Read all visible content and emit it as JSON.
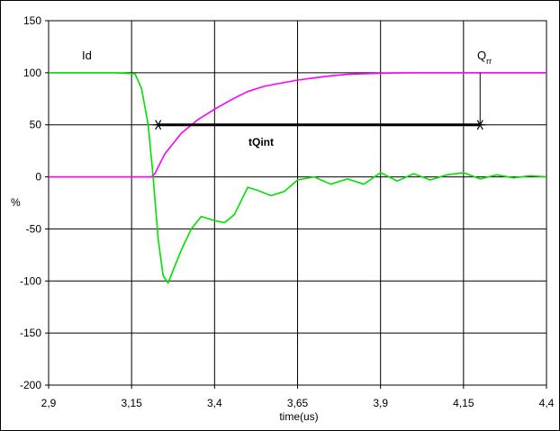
{
  "chart_data": {
    "type": "line",
    "title": "",
    "xlabel": "time(us)",
    "ylabel": "%",
    "xlim": [
      2.9,
      4.4
    ],
    "ylim": [
      -200,
      150
    ],
    "x_ticks": [
      2.9,
      3.15,
      3.4,
      3.65,
      3.9,
      4.15,
      4.4
    ],
    "x_tick_labels": [
      "2,9",
      "3,15",
      "3,4",
      "3,65",
      "3,9",
      "4,15",
      "4,4"
    ],
    "y_ticks": [
      150,
      100,
      50,
      0,
      -50,
      -100,
      -150,
      -200
    ],
    "y_tick_labels": [
      "150",
      "100",
      "50",
      "0",
      "-50",
      "-100",
      "-150",
      "-200"
    ],
    "grid": true,
    "legend": "none",
    "series": [
      {
        "name": "Id",
        "color": "#00e000",
        "x": [
          2.9,
          3.0,
          3.1,
          3.16,
          3.18,
          3.2,
          3.215,
          3.23,
          3.245,
          3.26,
          3.275,
          3.3,
          3.33,
          3.36,
          3.4,
          3.43,
          3.46,
          3.5,
          3.53,
          3.57,
          3.61,
          3.65,
          3.7,
          3.75,
          3.8,
          3.85,
          3.9,
          3.95,
          4.0,
          4.05,
          4.1,
          4.15,
          4.2,
          4.25,
          4.3,
          4.35,
          4.4
        ],
        "y": [
          100,
          100,
          100,
          99,
          85,
          50,
          0,
          -60,
          -95,
          -102,
          -90,
          -70,
          -50,
          -38,
          -42,
          -44,
          -36,
          -10,
          -13,
          -18,
          -14,
          -3,
          0,
          -7,
          -2,
          -7,
          4,
          -4,
          3,
          -3,
          2,
          4,
          -2,
          2,
          -1,
          1,
          0
        ]
      },
      {
        "name": "Qrr",
        "color": "#ff00ff",
        "x": [
          2.9,
          3.0,
          3.1,
          3.2,
          3.21,
          3.22,
          3.25,
          3.3,
          3.35,
          3.4,
          3.45,
          3.5,
          3.55,
          3.6,
          3.65,
          3.7,
          3.75,
          3.8,
          3.85,
          3.9,
          3.95,
          4.0,
          4.05,
          4.1,
          4.15,
          4.2,
          4.3,
          4.4
        ],
        "y": [
          0,
          0,
          0,
          0,
          0,
          3,
          22,
          42,
          55,
          65,
          74,
          82,
          87,
          90,
          93,
          95,
          97,
          98.5,
          99,
          99.5,
          99.8,
          100,
          100,
          100,
          100,
          100,
          100,
          100
        ]
      }
    ],
    "annotations": {
      "id_label": "Id",
      "qrr_label": "Q",
      "qrr_sub": "rr",
      "tqint_label": "tQint",
      "tqint_start": [
        3.23,
        50
      ],
      "tqint_end": [
        4.2,
        50
      ],
      "qrr_marker_x": 4.2,
      "qrr_marker_y_top": 100,
      "qrr_marker_y_bottom": 50
    }
  }
}
